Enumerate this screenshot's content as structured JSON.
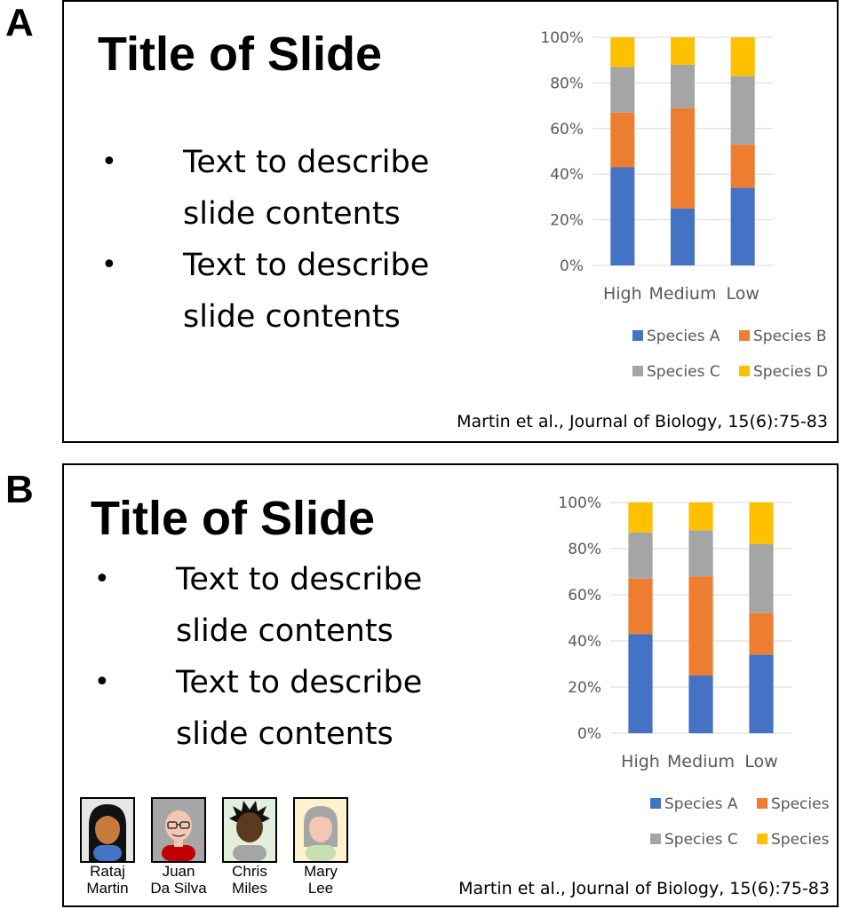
{
  "panels": [
    {
      "letter": "A",
      "title": "Title of Slide",
      "bullets": [
        {
          "line1": "Text to describe",
          "line2": "slide contents"
        },
        {
          "line1": "Text to describe",
          "line2": "slide contents"
        }
      ],
      "citation": "Martin et al., Journal of Biology, 15(6):75-83"
    },
    {
      "letter": "B",
      "title": "Title of Slide",
      "bullets": [
        {
          "line1": "Text to describe",
          "line2": "slide contents"
        },
        {
          "line1": "Text to describe",
          "line2": "slide contents"
        }
      ],
      "citation": "Martin et al., Journal of Biology, 15(6):75-83",
      "authors": [
        {
          "line1": "Rataj",
          "line2": "Martin",
          "icon": "avatar-long-black-hair-icon",
          "bg": "#e6e6e6"
        },
        {
          "line1": "Juan",
          "line2": "Da Silva",
          "icon": "avatar-glasses-bald-icon",
          "bg": "#a6a6a6"
        },
        {
          "line1": "Chris",
          "line2": "Miles",
          "icon": "avatar-spiky-hair-icon",
          "bg": "#e2efda"
        },
        {
          "line1": "Mary",
          "line2": "Lee",
          "icon": "avatar-grey-hair-icon",
          "bg": "#fff2cc"
        }
      ]
    }
  ],
  "bullet_symbol": "•",
  "chart_data": [
    {
      "type": "bar",
      "stacked": true,
      "percent": true,
      "categories": [
        "High",
        "Medium",
        "Low"
      ],
      "series": [
        {
          "name": "Species A",
          "color": "#4472c4",
          "values": [
            43,
            25,
            34
          ]
        },
        {
          "name": "Species B",
          "color": "#ed7d31",
          "values": [
            24,
            44,
            19
          ]
        },
        {
          "name": "Species C",
          "color": "#a5a5a5",
          "values": [
            20,
            19,
            30
          ]
        },
        {
          "name": "Species D",
          "color": "#ffc000",
          "values": [
            13,
            12,
            17
          ]
        }
      ],
      "ylim": [
        0,
        100
      ],
      "yticks": [
        "0%",
        "20%",
        "40%",
        "60%",
        "80%",
        "100%"
      ],
      "grid": true,
      "legend": "bottom"
    },
    {
      "type": "bar",
      "stacked": true,
      "percent": true,
      "categories": [
        "High",
        "Medium",
        "Low"
      ],
      "series": [
        {
          "name": "Species A",
          "color": "#4472c4",
          "values": [
            43,
            25,
            34
          ]
        },
        {
          "name": "Species B",
          "color": "#ed7d31",
          "values": [
            24,
            43,
            18
          ]
        },
        {
          "name": "Species C",
          "color": "#a5a5a5",
          "values": [
            20,
            20,
            30
          ]
        },
        {
          "name": "Species D",
          "color": "#ffc000",
          "values": [
            13,
            12,
            18
          ]
        }
      ],
      "ylim": [
        0,
        100
      ],
      "yticks": [
        "0%",
        "20%",
        "40%",
        "60%",
        "80%",
        "100%"
      ],
      "grid": true,
      "legend": "bottom"
    }
  ]
}
